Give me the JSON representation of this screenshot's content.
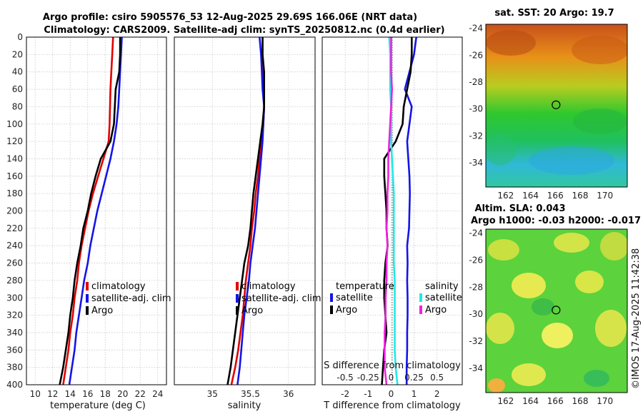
{
  "header": {
    "title_line1": "Argo profile: csiro 5905576_53 12-Aug-2025 29.69S 166.06E (NRT data)",
    "title_line2": "Climatology: CARS2009. Satellite-adj clim: synTS_20250812.nc (0.4d earlier)"
  },
  "copyright": "©IMOS 17-Aug-2025 11:42:38",
  "colors": {
    "climatology": "#e00000",
    "satellite": "#1414e6",
    "argo": "#000000",
    "sal_satellite": "#22e8e8",
    "sal_argo": "#ee22dd"
  },
  "chart_data": [
    {
      "type": "line",
      "id": "temperature",
      "xlabel": "temperature (deg C)",
      "ylabel": "",
      "xlim": [
        9,
        25
      ],
      "ylim": [
        400,
        0
      ],
      "xticks": [
        "10",
        "12",
        "14",
        "16",
        "18",
        "20",
        "22",
        "24"
      ],
      "yticks": [
        "0",
        "20",
        "40",
        "60",
        "80",
        "100",
        "120",
        "140",
        "160",
        "180",
        "200",
        "220",
        "240",
        "260",
        "280",
        "300",
        "320",
        "340",
        "360",
        "380",
        "400"
      ],
      "legend": [
        "climatology",
        "satellite-adj. clim",
        "Argo"
      ],
      "series": [
        {
          "name": "climatology",
          "depth": [
            0,
            20,
            40,
            60,
            80,
            100,
            120,
            140,
            160,
            180,
            200,
            220,
            240,
            260,
            280,
            300,
            320,
            340,
            360,
            380,
            400
          ],
          "values": [
            18.9,
            18.8,
            18.7,
            18.6,
            18.55,
            18.5,
            18.4,
            17.8,
            17.2,
            16.6,
            16.1,
            15.7,
            15.3,
            15.0,
            14.8,
            14.5,
            14.3,
            14.0,
            13.8,
            13.5,
            13.2
          ]
        },
        {
          "name": "satellite-adj. clim",
          "depth": [
            0,
            20,
            40,
            60,
            80,
            100,
            120,
            140,
            160,
            180,
            200,
            220,
            240,
            260,
            280,
            300,
            320,
            340,
            360,
            380,
            400
          ],
          "values": [
            19.9,
            19.8,
            19.7,
            19.6,
            19.5,
            19.3,
            19.0,
            18.6,
            18.1,
            17.6,
            17.1,
            16.7,
            16.3,
            16.0,
            15.6,
            15.3,
            15.0,
            14.7,
            14.5,
            14.2,
            13.9
          ]
        },
        {
          "name": "Argo",
          "depth": [
            0,
            20,
            40,
            60,
            80,
            100,
            120,
            140,
            160,
            180,
            200,
            220,
            240,
            260,
            280,
            300,
            320,
            340,
            360,
            380,
            400
          ],
          "values": [
            19.7,
            19.7,
            19.6,
            19.2,
            19.1,
            19.0,
            18.6,
            17.5,
            16.9,
            16.4,
            16.0,
            15.5,
            15.2,
            14.8,
            14.5,
            14.3,
            14.0,
            13.8,
            13.5,
            13.2,
            12.8
          ]
        }
      ]
    },
    {
      "type": "line",
      "id": "salinity",
      "xlabel": "salinity",
      "xlim": [
        34.5,
        36.35
      ],
      "ylim": [
        400,
        0
      ],
      "xticks": [
        "35",
        "35.5",
        "36"
      ],
      "legend": [
        "climatology",
        "satellite-adj. clim",
        "Argo"
      ],
      "series": [
        {
          "name": "climatology",
          "depth": [
            0,
            20,
            40,
            60,
            80,
            100,
            120,
            140,
            160,
            180,
            200,
            220,
            240,
            260,
            280,
            300,
            320,
            340,
            360,
            380,
            400
          ],
          "values": [
            35.66,
            35.66,
            35.67,
            35.67,
            35.68,
            35.67,
            35.65,
            35.62,
            35.6,
            35.57,
            35.55,
            35.52,
            35.5,
            35.47,
            35.44,
            35.42,
            35.4,
            35.37,
            35.34,
            35.3,
            35.25
          ]
        },
        {
          "name": "satellite-adj. clim",
          "depth": [
            0,
            20,
            40,
            60,
            80,
            100,
            120,
            140,
            160,
            180,
            200,
            220,
            240,
            260,
            280,
            300,
            320,
            340,
            360,
            380,
            400
          ],
          "values": [
            35.62,
            35.64,
            35.65,
            35.66,
            35.68,
            35.67,
            35.66,
            35.64,
            35.62,
            35.6,
            35.58,
            35.56,
            35.53,
            35.5,
            35.48,
            35.45,
            35.42,
            35.4,
            35.38,
            35.36,
            35.33
          ]
        },
        {
          "name": "Argo",
          "depth": [
            0,
            20,
            40,
            60,
            80,
            100,
            120,
            140,
            160,
            180,
            200,
            220,
            240,
            260,
            280,
            300,
            320,
            340,
            360,
            380,
            400
          ],
          "values": [
            35.66,
            35.66,
            35.68,
            35.68,
            35.68,
            35.66,
            35.63,
            35.6,
            35.57,
            35.54,
            35.52,
            35.5,
            35.47,
            35.42,
            35.39,
            35.36,
            35.33,
            35.3,
            35.27,
            35.24,
            35.2
          ]
        }
      ]
    },
    {
      "type": "line",
      "id": "difference",
      "xlabel": "T difference from climatology",
      "xlabel_top": "S difference from climatology",
      "xlim": [
        -3,
        3.1
      ],
      "ylim": [
        400,
        0
      ],
      "xticks": [
        "-2",
        "-1",
        "0",
        "1",
        "2"
      ],
      "xticks_top": [
        "-0.5",
        "-0.25",
        "0",
        "0.25",
        "0.5"
      ],
      "legend_temperature_title": "temperature",
      "legend_salinity_title": "salinity",
      "legend_temperature": [
        "satellite",
        "Argo"
      ],
      "legend_salinity": [
        "satellite",
        "Argo"
      ],
      "series": [
        {
          "name": "T satellite",
          "depth": [
            0,
            20,
            40,
            60,
            80,
            100,
            120,
            140,
            160,
            180,
            200,
            220,
            240,
            260,
            280,
            300,
            320,
            340,
            360,
            380,
            400
          ],
          "values": [
            1.1,
            1.0,
            0.8,
            0.6,
            0.9,
            0.8,
            0.7,
            0.75,
            0.8,
            0.82,
            0.8,
            0.78,
            0.7,
            0.72,
            0.7,
            0.72,
            0.72,
            0.7,
            0.7,
            0.68,
            0.68
          ]
        },
        {
          "name": "T Argo",
          "depth": [
            0,
            20,
            40,
            60,
            80,
            100,
            120,
            140,
            160,
            180,
            200,
            220,
            240,
            260,
            280,
            300,
            320,
            340,
            360,
            380,
            400
          ],
          "values": [
            0.9,
            0.9,
            0.85,
            0.7,
            0.55,
            0.5,
            0.2,
            -0.3,
            -0.3,
            -0.25,
            -0.2,
            -0.2,
            -0.15,
            -0.25,
            -0.3,
            -0.3,
            -0.25,
            -0.2,
            -0.3,
            -0.35,
            -0.4
          ]
        },
        {
          "name": "S satellite",
          "depth": [
            0,
            20,
            40,
            60,
            80,
            100,
            120,
            140,
            160,
            180,
            200,
            220,
            240,
            260,
            280,
            300,
            320,
            340,
            360,
            380,
            400
          ],
          "values": [
            -0.02,
            -0.01,
            -0.01,
            -0.01,
            0.0,
            0.0,
            0.0,
            0.01,
            0.02,
            0.03,
            0.03,
            0.03,
            0.03,
            0.03,
            0.04,
            0.04,
            0.04,
            0.04,
            0.04,
            0.05,
            0.07
          ]
        },
        {
          "name": "S Argo",
          "depth": [
            0,
            20,
            40,
            60,
            80,
            100,
            120,
            140,
            160,
            180,
            200,
            220,
            240,
            260,
            280,
            300,
            320,
            340,
            360,
            380,
            400
          ],
          "values": [
            0.0,
            0.0,
            0.0,
            0.01,
            0.0,
            -0.01,
            -0.02,
            -0.03,
            -0.03,
            -0.04,
            -0.04,
            -0.05,
            -0.04,
            -0.05,
            -0.05,
            -0.06,
            -0.06,
            -0.07,
            -0.07,
            -0.07,
            -0.05
          ]
        }
      ]
    },
    {
      "type": "heatmap",
      "id": "sst_map",
      "title": "sat. SST: 20 Argo: 19.7",
      "xlim": [
        160.4,
        171.8
      ],
      "ylim": [
        -35.8,
        -23.7
      ],
      "xticks": [
        "162",
        "164",
        "166",
        "168",
        "170"
      ],
      "yticks": [
        "-24",
        "-26",
        "-28",
        "-30",
        "-32",
        "-34"
      ],
      "argo_position": {
        "lon": 166.06,
        "lat": -29.69
      }
    },
    {
      "type": "heatmap",
      "id": "sla_map",
      "title_line1": "Altim. SLA: 0.043",
      "title_line2": "Argo h1000: -0.03 h2000: -0.017",
      "xlim": [
        160.4,
        171.8
      ],
      "ylim": [
        -35.8,
        -23.7
      ],
      "xticks": [
        "162",
        "164",
        "166",
        "168",
        "170"
      ],
      "yticks": [
        "-24",
        "-26",
        "-28",
        "-30",
        "-32",
        "-34"
      ],
      "argo_position": {
        "lon": 166.06,
        "lat": -29.69
      }
    }
  ]
}
